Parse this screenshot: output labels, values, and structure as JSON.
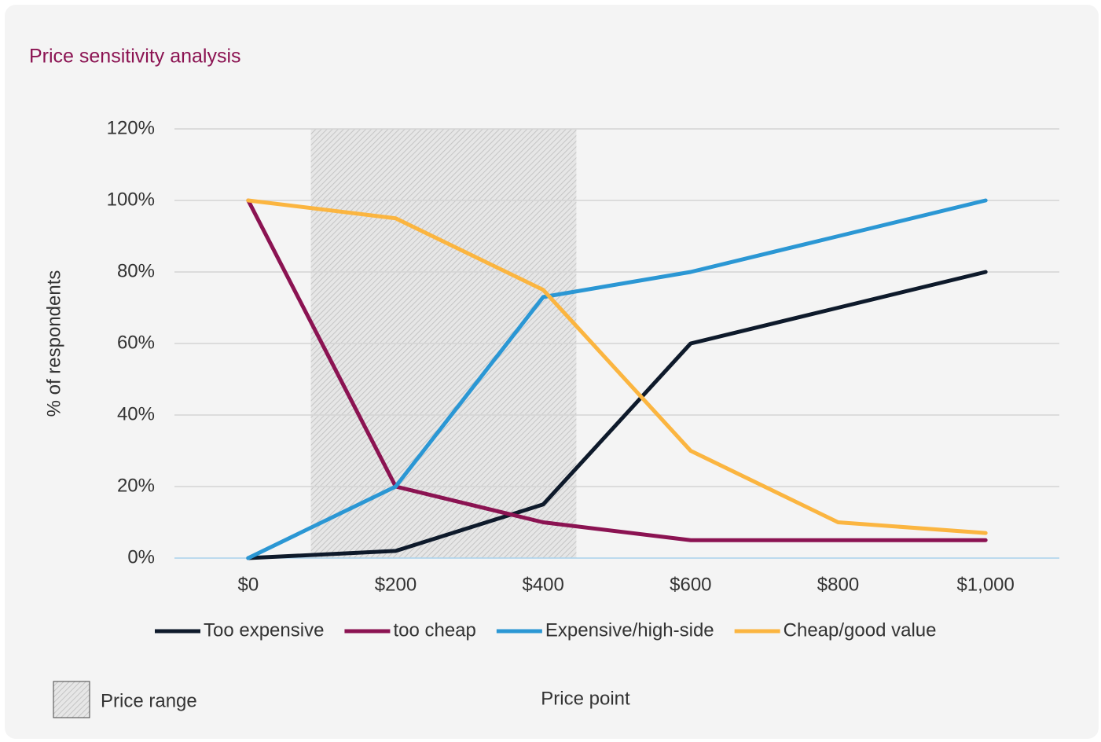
{
  "chart_data": {
    "type": "line",
    "title": "Price sensitivity analysis",
    "x_label": "Price point",
    "y_label": "% of respondents",
    "x": [
      0,
      200,
      400,
      600,
      800,
      1000
    ],
    "xlim": [
      -100,
      1100
    ],
    "xticks": [
      {
        "value": 0,
        "label": "$0"
      },
      {
        "value": 200,
        "label": "$200"
      },
      {
        "value": 400,
        "label": "$400"
      },
      {
        "value": 600,
        "label": "$600"
      },
      {
        "value": 800,
        "label": "$800"
      },
      {
        "value": 1000,
        "label": "$1,000"
      }
    ],
    "ylim": [
      0,
      120
    ],
    "yticks": [
      {
        "value": 0,
        "label": "0%"
      },
      {
        "value": 20,
        "label": "20%"
      },
      {
        "value": 40,
        "label": "40%"
      },
      {
        "value": 60,
        "label": "60%"
      },
      {
        "value": 80,
        "label": "80%"
      },
      {
        "value": 100,
        "label": "100%"
      },
      {
        "value": 120,
        "label": "120%"
      }
    ],
    "grid": true,
    "legend": "bottom",
    "series": [
      {
        "name": "Too expensive",
        "color": "#0e1a2b",
        "values": [
          0,
          2,
          15,
          60,
          70,
          80
        ]
      },
      {
        "name": "too cheap",
        "color": "#8b1352",
        "values": [
          100,
          20,
          10,
          5,
          5,
          5
        ]
      },
      {
        "name": "Expensive/high-side",
        "color": "#2b97d4",
        "values": [
          0,
          20,
          73,
          80,
          90,
          100
        ]
      },
      {
        "name": "Cheap/good value",
        "color": "#fbb540",
        "values": [
          100,
          95,
          75,
          30,
          10,
          7
        ]
      }
    ],
    "price_range": {
      "label": "Price range",
      "range": [
        85,
        445
      ]
    }
  }
}
